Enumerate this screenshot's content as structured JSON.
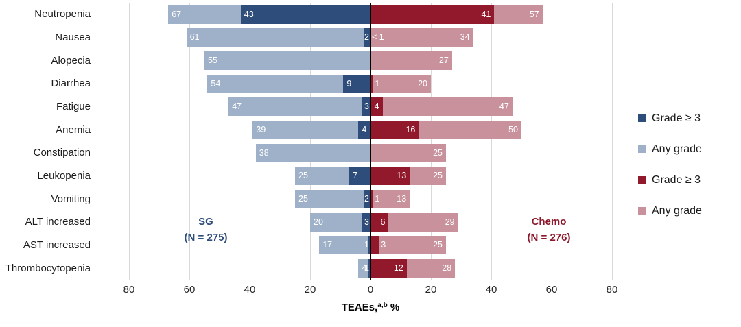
{
  "chart_data": {
    "type": "bar",
    "variant": "diverging-tornado",
    "title": "",
    "xlabel": {
      "prefix": "TEAEs,",
      "sup": "a,b",
      "suffix": " %"
    },
    "xticks": [
      {
        "v": -80,
        "label": "80"
      },
      {
        "v": -60,
        "label": "60"
      },
      {
        "v": -40,
        "label": "40"
      },
      {
        "v": -20,
        "label": "20"
      },
      {
        "v": 0,
        "label": "0"
      },
      {
        "v": 20,
        "label": "20"
      },
      {
        "v": 40,
        "label": "40"
      },
      {
        "v": 60,
        "label": "60"
      },
      {
        "v": 80,
        "label": "80"
      }
    ],
    "xlim": [
      -90,
      90
    ],
    "unit": "%",
    "grid": true,
    "colors": {
      "sg_g3": "#2F4D7A",
      "sg_any": "#9FB1C9",
      "chemo_g3": "#92192B",
      "chemo_any": "#C8919C",
      "gridline": "#D9D9D9",
      "zero_axis": "#000000"
    },
    "groups": {
      "sg": {
        "name": "SG",
        "n": "(N = 275)",
        "color": "#2F4D7A"
      },
      "chemo": {
        "name": "Chemo",
        "n": "(N = 276)",
        "color": "#8C192B"
      }
    },
    "legend": [
      {
        "label": "Grade ≥ 3",
        "color": "#2F4D7A"
      },
      {
        "label": "Any grade",
        "color": "#9FB1C9"
      },
      {
        "label": "Grade ≥ 3",
        "color": "#92192B"
      },
      {
        "label": "Any grade",
        "color": "#C8919C"
      }
    ],
    "legend_position": "right",
    "rows": [
      {
        "label": "Neutropenia",
        "sg_any": 67,
        "sg_any_label": "67",
        "sg_g3": 43,
        "sg_g3_label": "43",
        "chemo_g3": 41,
        "chemo_g3_label": "41",
        "chemo_any": 57,
        "chemo_any_label": "57"
      },
      {
        "label": "Nausea",
        "sg_any": 61,
        "sg_any_label": "61",
        "sg_g3": 2,
        "sg_g3_label": "2",
        "chemo_g3": 0,
        "chemo_g3_label": "< 1",
        "chemo_any": 34,
        "chemo_any_label": "34"
      },
      {
        "label": "Alopecia",
        "sg_any": 55,
        "sg_any_label": "55",
        "sg_g3": null,
        "sg_g3_label": "",
        "chemo_g3": null,
        "chemo_g3_label": "",
        "chemo_any": 27,
        "chemo_any_label": "27"
      },
      {
        "label": "Diarrhea",
        "sg_any": 54,
        "sg_any_label": "54",
        "sg_g3": 9,
        "sg_g3_label": "9",
        "chemo_g3": 1,
        "chemo_g3_label": "1",
        "chemo_any": 20,
        "chemo_any_label": "20"
      },
      {
        "label": "Fatigue",
        "sg_any": 47,
        "sg_any_label": "47",
        "sg_g3": 3,
        "sg_g3_label": "3",
        "chemo_g3": 4,
        "chemo_g3_label": "4",
        "chemo_any": 47,
        "chemo_any_label": "47"
      },
      {
        "label": "Anemia",
        "sg_any": 39,
        "sg_any_label": "39",
        "sg_g3": 4,
        "sg_g3_label": "4",
        "chemo_g3": 16,
        "chemo_g3_label": "16",
        "chemo_any": 50,
        "chemo_any_label": "50"
      },
      {
        "label": "Constipation",
        "sg_any": 38,
        "sg_any_label": "38",
        "sg_g3": null,
        "sg_g3_label": "",
        "chemo_g3": null,
        "chemo_g3_label": "",
        "chemo_any": 25,
        "chemo_any_label": "25"
      },
      {
        "label": "Leukopenia",
        "sg_any": 25,
        "sg_any_label": "25",
        "sg_g3": 7,
        "sg_g3_label": "7",
        "chemo_g3": 13,
        "chemo_g3_label": "13",
        "chemo_any": 25,
        "chemo_any_label": "25"
      },
      {
        "label": "Vomiting",
        "sg_any": 25,
        "sg_any_label": "25",
        "sg_g3": 2,
        "sg_g3_label": "2",
        "chemo_g3": 1,
        "chemo_g3_label": "1",
        "chemo_any": 13,
        "chemo_any_label": "13"
      },
      {
        "label": "ALT increased",
        "sg_any": 20,
        "sg_any_label": "20",
        "sg_g3": 3,
        "sg_g3_label": "3",
        "chemo_g3": 6,
        "chemo_g3_label": "6",
        "chemo_any": 29,
        "chemo_any_label": "29"
      },
      {
        "label": "AST increased",
        "sg_any": 17,
        "sg_any_label": "17",
        "sg_g3": 1,
        "sg_g3_label": "1",
        "chemo_g3": 3,
        "chemo_g3_label": "3",
        "chemo_any": 25,
        "chemo_any_label": "25"
      },
      {
        "label": "Thrombocytopenia",
        "sg_any": 4,
        "sg_any_label": "4",
        "sg_g3": 1,
        "sg_g3_label": "1",
        "chemo_g3": 12,
        "chemo_g3_label": "12",
        "chemo_any": 28,
        "chemo_any_label": "28"
      }
    ],
    "x_axis_title": "TEAEs,a,b %"
  }
}
